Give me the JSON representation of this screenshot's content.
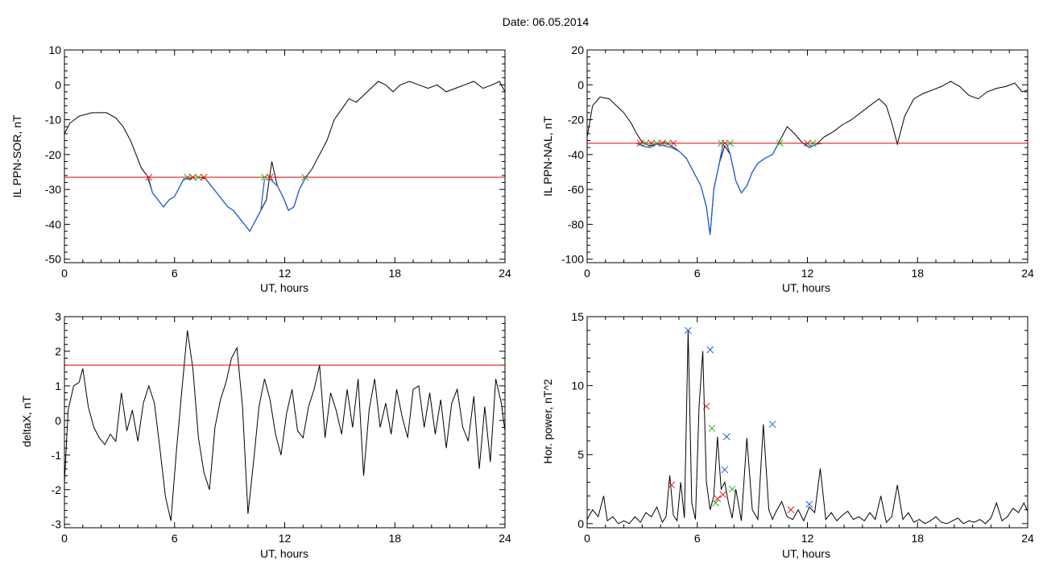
{
  "title": "Date:  06.05.2014",
  "colors": {
    "data_line": "#000000",
    "below_threshold": "#1f5fd6",
    "threshold_line": "#e00000",
    "marker_red": "#e02020",
    "marker_green": "#20b020",
    "marker_blue": "#1f5fd6"
  },
  "chart_data": [
    {
      "id": "ppn_sor",
      "type": "line",
      "title": "",
      "xlabel": "UT, hours",
      "ylabel": "IL PPN-SOR, nT",
      "xlim": [
        0,
        24
      ],
      "ylim": [
        -51,
        10
      ],
      "xticks": [
        0,
        6,
        12,
        18,
        24
      ],
      "yticks": [
        -50,
        -40,
        -30,
        -20,
        -10,
        0,
        10
      ],
      "threshold": -26.5,
      "x": [
        0,
        0.3,
        0.8,
        1.5,
        2.3,
        2.8,
        3.2,
        3.6,
        3.9,
        4.2,
        4.5,
        4.8,
        5.1,
        5.4,
        5.7,
        6.0,
        6.3,
        6.5,
        6.8,
        7.1,
        7.4,
        7.7,
        8.0,
        8.3,
        8.6,
        8.9,
        9.2,
        9.5,
        9.8,
        10.1,
        10.4,
        10.7,
        11.0,
        11.3,
        11.6,
        11.9,
        12.2,
        12.5,
        12.8,
        13.1,
        13.5,
        13.9,
        14.3,
        14.7,
        15.1,
        15.5,
        15.9,
        16.3,
        16.7,
        17.1,
        17.5,
        17.9,
        18.3,
        18.8,
        19.3,
        19.8,
        20.3,
        20.8,
        21.3,
        21.8,
        22.3,
        22.8,
        23.3,
        23.7,
        24.0
      ],
      "values": [
        -14,
        -11,
        -9,
        -8,
        -8,
        -9.5,
        -12,
        -16,
        -20,
        -24,
        -26,
        -31,
        -33,
        -35,
        -33,
        -32,
        -29,
        -27,
        -27,
        -26.5,
        -26.5,
        -27,
        -29,
        -31,
        -33,
        -35,
        -36,
        -38,
        -40,
        -42,
        -39,
        -36,
        -33,
        -22,
        -29,
        -32,
        -36,
        -35,
        -30,
        -27,
        -24,
        -20,
        -16,
        -10,
        -7,
        -4,
        -5,
        -3,
        -1,
        1,
        0,
        -2,
        0,
        1,
        0,
        -1,
        0,
        -2,
        -1,
        0,
        1,
        -1,
        0,
        1,
        -2
      ],
      "series_below": [
        {
          "x": [
            4.6,
            4.8,
            5.1,
            5.4,
            5.7,
            6.0,
            6.3,
            6.5,
            6.8
          ],
          "values": [
            -27,
            -31,
            -33,
            -35,
            -33,
            -32,
            -29,
            -27,
            -26.8
          ]
        },
        {
          "x": [
            7.7,
            8.0,
            8.3,
            8.6,
            8.9,
            9.2,
            9.5,
            9.8,
            10.1,
            10.4,
            10.7,
            10.9
          ],
          "values": [
            -27,
            -29,
            -31,
            -33,
            -35,
            -36,
            -38,
            -40,
            -42,
            -39,
            -36,
            -27
          ]
        },
        {
          "x": [
            11.2,
            11.6,
            11.9,
            12.2,
            12.5,
            12.8,
            13.1
          ],
          "values": [
            -27,
            -29,
            -32,
            -36,
            -35,
            -30,
            -27
          ]
        }
      ],
      "markers": [
        {
          "x": 4.6,
          "y": -26.5,
          "color": "red"
        },
        {
          "x": 6.7,
          "y": -26.5,
          "color": "green"
        },
        {
          "x": 7.0,
          "y": -26.5,
          "color": "red"
        },
        {
          "x": 7.3,
          "y": -26.5,
          "color": "green"
        },
        {
          "x": 7.6,
          "y": -26.5,
          "color": "red"
        },
        {
          "x": 10.9,
          "y": -26.5,
          "color": "green"
        },
        {
          "x": 11.2,
          "y": -26.5,
          "color": "red"
        },
        {
          "x": 13.1,
          "y": -26.5,
          "color": "green"
        }
      ]
    },
    {
      "id": "ppn_nal",
      "type": "line",
      "title": "",
      "xlabel": "UT, hours",
      "ylabel": "IL PPN-NAL, nT",
      "xlim": [
        0,
        24
      ],
      "ylim": [
        -102,
        20
      ],
      "xticks": [
        0,
        6,
        12,
        18,
        24
      ],
      "yticks": [
        -100,
        -80,
        -60,
        -40,
        -20,
        0,
        20
      ],
      "threshold": -33.5,
      "x": [
        0,
        0.3,
        0.7,
        1.2,
        1.6,
        2.0,
        2.4,
        2.7,
        3.0,
        3.4,
        3.8,
        4.2,
        4.6,
        5.0,
        5.4,
        5.8,
        6.2,
        6.5,
        6.7,
        6.9,
        7.2,
        7.5,
        7.8,
        8.1,
        8.4,
        8.7,
        9.0,
        9.3,
        9.7,
        10.1,
        10.5,
        10.9,
        11.3,
        11.7,
        12.1,
        12.5,
        12.9,
        13.4,
        13.9,
        14.4,
        14.9,
        15.4,
        15.9,
        16.3,
        16.6,
        16.9,
        17.3,
        17.8,
        18.3,
        18.8,
        19.3,
        19.8,
        20.3,
        20.8,
        21.3,
        21.8,
        22.3,
        22.8,
        23.3,
        23.7,
        24.0
      ],
      "values": [
        -30,
        -12,
        -7,
        -8,
        -12,
        -16,
        -22,
        -28,
        -33,
        -35,
        -34,
        -33,
        -35,
        -38,
        -42,
        -50,
        -58,
        -70,
        -86,
        -60,
        -45,
        -35,
        -40,
        -55,
        -62,
        -58,
        -50,
        -45,
        -42,
        -40,
        -32,
        -24,
        -28,
        -33,
        -36,
        -34,
        -30,
        -27,
        -23,
        -20,
        -16,
        -12,
        -8,
        -12,
        -22,
        -34,
        -18,
        -8,
        -5,
        -3,
        -1,
        2,
        -1,
        -6,
        -8,
        -4,
        -2,
        -1,
        1,
        -4,
        -3
      ],
      "series_below": [
        {
          "x": [
            2.7,
            3.0,
            3.4,
            3.8,
            4.2,
            4.6,
            5.0,
            5.4,
            5.8,
            6.2,
            6.5,
            6.7,
            6.9,
            7.2,
            7.4
          ],
          "values": [
            -33.5,
            -35,
            -36,
            -34,
            -35,
            -36,
            -38,
            -42,
            -50,
            -58,
            -70,
            -86,
            -60,
            -45,
            -34
          ]
        },
        {
          "x": [
            7.6,
            7.8,
            8.1,
            8.4,
            8.7,
            9.0,
            9.3,
            9.7,
            10.1,
            10.4
          ],
          "values": [
            -34,
            -40,
            -55,
            -62,
            -58,
            -50,
            -45,
            -42,
            -40,
            -34
          ]
        },
        {
          "x": [
            11.9,
            12.1,
            12.5,
            12.8
          ],
          "values": [
            -34,
            -36,
            -34,
            -33.5
          ]
        }
      ],
      "markers": [
        {
          "x": 2.9,
          "y": -33.5,
          "color": "red"
        },
        {
          "x": 3.2,
          "y": -33.5,
          "color": "green"
        },
        {
          "x": 3.5,
          "y": -33.5,
          "color": "red"
        },
        {
          "x": 3.8,
          "y": -33.5,
          "color": "green"
        },
        {
          "x": 4.1,
          "y": -33.5,
          "color": "red"
        },
        {
          "x": 4.4,
          "y": -33.5,
          "color": "green"
        },
        {
          "x": 4.7,
          "y": -33.5,
          "color": "red"
        },
        {
          "x": 7.3,
          "y": -33.5,
          "color": "green"
        },
        {
          "x": 7.5,
          "y": -33.5,
          "color": "red"
        },
        {
          "x": 7.8,
          "y": -33.5,
          "color": "green"
        },
        {
          "x": 10.5,
          "y": -33.5,
          "color": "green"
        },
        {
          "x": 12.0,
          "y": -33.5,
          "color": "red"
        },
        {
          "x": 12.3,
          "y": -33.5,
          "color": "green"
        }
      ]
    },
    {
      "id": "deltax",
      "type": "line",
      "title": "",
      "xlabel": "UT, hours",
      "ylabel": "deltaX, nT",
      "xlim": [
        0,
        24
      ],
      "ylim": [
        -3.1,
        3
      ],
      "xticks": [
        0,
        6,
        12,
        18,
        24
      ],
      "yticks": [
        -3,
        -2,
        -1,
        0,
        1,
        2,
        3
      ],
      "threshold": 1.6,
      "x": [
        0,
        0.2,
        0.5,
        0.8,
        1.0,
        1.3,
        1.6,
        1.9,
        2.2,
        2.5,
        2.8,
        3.1,
        3.4,
        3.7,
        4.0,
        4.3,
        4.6,
        4.9,
        5.2,
        5.5,
        5.8,
        6.1,
        6.4,
        6.7,
        7.0,
        7.3,
        7.6,
        7.9,
        8.2,
        8.5,
        8.8,
        9.1,
        9.4,
        9.7,
        10.0,
        10.3,
        10.6,
        10.9,
        11.2,
        11.5,
        11.8,
        12.1,
        12.4,
        12.7,
        13.0,
        13.3,
        13.6,
        13.9,
        14.2,
        14.5,
        14.8,
        15.1,
        15.4,
        15.7,
        16.0,
        16.3,
        16.6,
        16.9,
        17.2,
        17.5,
        17.8,
        18.1,
        18.4,
        18.7,
        19.0,
        19.3,
        19.6,
        19.9,
        20.2,
        20.5,
        20.8,
        21.1,
        21.4,
        21.7,
        22.0,
        22.3,
        22.6,
        22.9,
        23.2,
        23.5,
        23.8,
        24.0
      ],
      "values": [
        -1.8,
        0.3,
        1.0,
        1.1,
        1.5,
        0.4,
        -0.2,
        -0.5,
        -0.7,
        -0.4,
        -0.6,
        0.8,
        -0.3,
        0.3,
        -0.6,
        0.5,
        1.0,
        0.5,
        -0.8,
        -2.2,
        -2.9,
        -0.9,
        0.9,
        2.6,
        1.5,
        -0.5,
        -1.5,
        -2.0,
        -0.2,
        0.6,
        1.1,
        1.8,
        2.1,
        0.4,
        -2.7,
        -1.2,
        0.4,
        1.2,
        0.6,
        -0.4,
        -1.0,
        0.2,
        0.9,
        -0.3,
        -0.5,
        0.4,
        0.9,
        1.6,
        -0.5,
        0.8,
        0.3,
        -0.4,
        0.9,
        -0.2,
        1.2,
        -1.6,
        0.3,
        1.2,
        -0.2,
        0.5,
        -0.4,
        0.9,
        0.1,
        -0.5,
        0.9,
        1.0,
        -0.2,
        0.8,
        -0.4,
        0.6,
        -0.8,
        0.5,
        0.9,
        -0.2,
        -0.6,
        0.7,
        -1.4,
        0.4,
        -1.2,
        1.2,
        0.5,
        -0.3
      ]
    },
    {
      "id": "hor_power",
      "type": "line",
      "title": "",
      "xlabel": "UT, hours",
      "ylabel": "Hor. power, nT^2",
      "xlim": [
        0,
        24
      ],
      "ylim": [
        -0.3,
        15
      ],
      "xticks": [
        0,
        6,
        12,
        18,
        24
      ],
      "yticks": [
        0,
        5,
        10,
        15
      ],
      "x": [
        0,
        0.3,
        0.6,
        0.9,
        1.1,
        1.4,
        1.7,
        2.0,
        2.3,
        2.6,
        2.9,
        3.2,
        3.5,
        3.8,
        4.1,
        4.3,
        4.5,
        4.7,
        4.9,
        5.1,
        5.3,
        5.5,
        5.7,
        5.9,
        6.1,
        6.3,
        6.5,
        6.7,
        6.9,
        7.1,
        7.3,
        7.5,
        7.7,
        7.9,
        8.1,
        8.4,
        8.7,
        9.0,
        9.3,
        9.6,
        9.9,
        10.1,
        10.3,
        10.6,
        10.9,
        11.2,
        11.5,
        11.8,
        12.1,
        12.4,
        12.7,
        13.0,
        13.3,
        13.6,
        13.9,
        14.2,
        14.5,
        14.8,
        15.1,
        15.4,
        15.7,
        16.0,
        16.3,
        16.6,
        16.9,
        17.2,
        17.5,
        17.8,
        18.1,
        18.4,
        18.7,
        19.0,
        19.3,
        19.6,
        19.9,
        20.2,
        20.5,
        20.8,
        21.1,
        21.4,
        21.7,
        22.0,
        22.3,
        22.6,
        22.9,
        23.2,
        23.5,
        23.8,
        24.0
      ],
      "values": [
        0.3,
        1.0,
        0.5,
        2.0,
        0.2,
        0.5,
        0.0,
        0.2,
        0.0,
        0.5,
        0.1,
        0.8,
        0.5,
        1.2,
        0.1,
        0.5,
        3.5,
        0.6,
        0.2,
        3.0,
        0.4,
        14.0,
        1.5,
        0.3,
        8.5,
        12.5,
        3.0,
        1.0,
        2.0,
        6.3,
        2.5,
        3.0,
        1.5,
        0.4,
        2.5,
        0.2,
        6.2,
        1.0,
        0.3,
        7.2,
        1.0,
        0.3,
        0.9,
        1.6,
        0.5,
        0.3,
        1.0,
        0.2,
        1.2,
        0.8,
        4.0,
        0.3,
        0.8,
        0.2,
        0.6,
        0.9,
        0.3,
        0.5,
        0.2,
        0.8,
        0.3,
        2.0,
        0.1,
        0.5,
        2.8,
        0.3,
        0.8,
        0.1,
        0.3,
        0.0,
        0.2,
        0.5,
        0.1,
        0.0,
        0.2,
        0.4,
        0.0,
        0.2,
        0.1,
        0.3,
        0.0,
        0.4,
        1.5,
        0.2,
        0.5,
        1.1,
        0.8,
        1.5,
        0.9
      ],
      "markers": [
        {
          "x": 4.6,
          "y": 2.8,
          "color": "red"
        },
        {
          "x": 5.5,
          "y": 14.0,
          "color": "blue"
        },
        {
          "x": 6.5,
          "y": 8.5,
          "color": "red"
        },
        {
          "x": 6.7,
          "y": 12.6,
          "color": "blue"
        },
        {
          "x": 6.8,
          "y": 6.9,
          "color": "green"
        },
        {
          "x": 7.0,
          "y": 1.5,
          "color": "green"
        },
        {
          "x": 7.1,
          "y": 1.8,
          "color": "red"
        },
        {
          "x": 7.4,
          "y": 2.1,
          "color": "red"
        },
        {
          "x": 7.5,
          "y": 3.9,
          "color": "blue"
        },
        {
          "x": 7.6,
          "y": 6.3,
          "color": "blue"
        },
        {
          "x": 7.9,
          "y": 2.5,
          "color": "green"
        },
        {
          "x": 10.1,
          "y": 7.2,
          "color": "blue"
        },
        {
          "x": 11.1,
          "y": 1.0,
          "color": "red"
        },
        {
          "x": 12.1,
          "y": 1.4,
          "color": "blue"
        }
      ]
    }
  ]
}
